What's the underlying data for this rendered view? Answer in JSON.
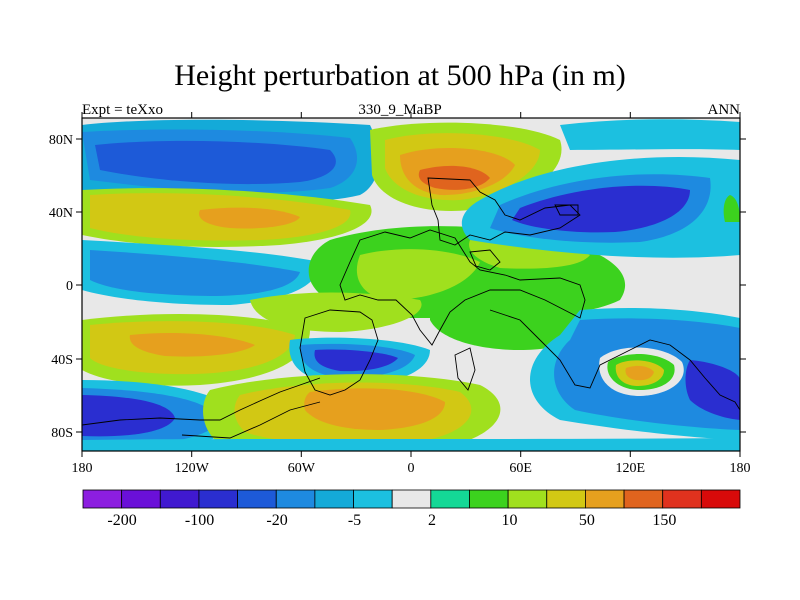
{
  "title": "Height perturbation at 500 hPa (in m)",
  "subtitle_left": "Expt = teXxo",
  "subtitle_center": "330_9_MaBP",
  "subtitle_right": "ANN",
  "axes": {
    "x_ticks": [
      "180",
      "120W",
      "60W",
      "0",
      "60E",
      "120E",
      "180"
    ],
    "y_ticks": [
      "80N",
      "40N",
      "0",
      "40S",
      "80S"
    ]
  },
  "colorbar": {
    "colors": [
      "#8c1ee0",
      "#6a10d8",
      "#4019d0",
      "#2a2ed0",
      "#1d5ad8",
      "#1e8ae0",
      "#14aad8",
      "#1cc0e0",
      "#e8e8e8",
      "#14d896",
      "#3cd21e",
      "#a0e01e",
      "#d2c814",
      "#e6a01e",
      "#e0641e",
      "#e0321e",
      "#d80a0a"
    ],
    "labels": [
      "-200",
      "-100",
      "-20",
      "-5",
      "2",
      "10",
      "50",
      "150"
    ]
  },
  "colors": {
    "background_field": "#e8e8e8",
    "frame": "#000000"
  }
}
